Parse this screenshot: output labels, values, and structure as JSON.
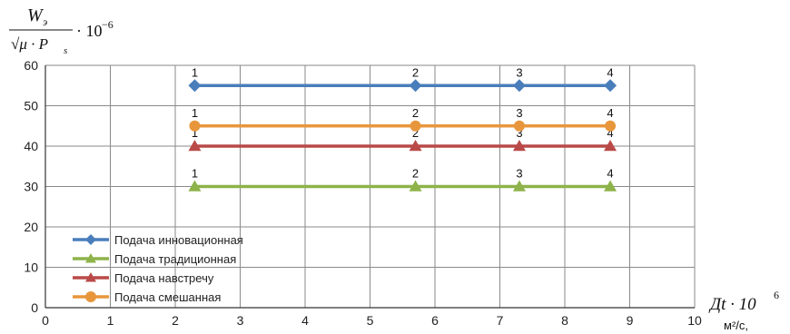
{
  "chart_data": {
    "type": "line",
    "ylabel_parts": {
      "numerator": "W",
      "numerator_sub": "э",
      "denominator": "√μ · P",
      "denominator_sub": "s",
      "factor": "· 10",
      "factor_exp": "−6"
    },
    "xlabel_parts": {
      "main": "Дt · 10",
      "exp": "6",
      "unit": "м²/с,"
    },
    "xlim": [
      0,
      10
    ],
    "ylim": [
      0,
      60
    ],
    "x_ticks": [
      "0",
      "1",
      "2",
      "3",
      "4",
      "5",
      "6",
      "7",
      "8",
      "9",
      "10"
    ],
    "y_ticks": [
      "0",
      "10",
      "20",
      "30",
      "40",
      "50",
      "60"
    ],
    "grid": true,
    "legend_position": "bottom-left",
    "point_labels": [
      "1",
      "2",
      "3",
      "4"
    ],
    "series": [
      {
        "name": "Подача инновационная",
        "color": "#4a7ebb",
        "marker": "diamond",
        "x": [
          2.3,
          5.7,
          7.3,
          8.7
        ],
        "y": [
          55,
          55,
          55,
          55
        ]
      },
      {
        "name": "Подача традиционная",
        "color": "#8db34a",
        "marker": "triangle",
        "x": [
          2.3,
          5.7,
          7.3,
          8.7
        ],
        "y": [
          30,
          30,
          30,
          30
        ]
      },
      {
        "name": "Подача навстречу",
        "color": "#b94a48",
        "marker": "triangle",
        "x": [
          2.3,
          5.7,
          7.3,
          8.7
        ],
        "y": [
          40,
          40,
          40,
          40
        ]
      },
      {
        "name": "Подача смешанная",
        "color": "#e8963c",
        "marker": "circle",
        "x": [
          2.3,
          5.7,
          7.3,
          8.7
        ],
        "y": [
          45,
          45,
          45,
          45
        ]
      }
    ]
  }
}
